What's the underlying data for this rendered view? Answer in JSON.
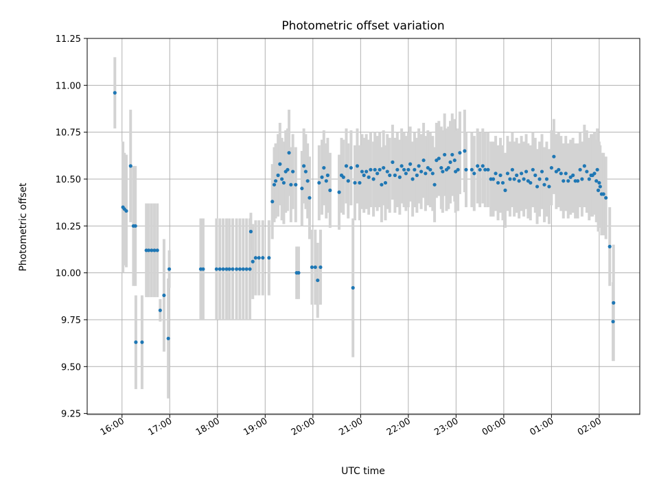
{
  "chart_data": {
    "type": "scatter",
    "title": "Photometric offset variation",
    "xlabel": "UTC time",
    "ylabel": "Photometric offset",
    "x_unit": "hours UTC, continuous across midnight (24 = 00:00 next day)",
    "xlim": [
      15.27,
      26.85
    ],
    "ylim": [
      9.245,
      11.25
    ],
    "x_tick_labels": [
      "16:00",
      "17:00",
      "18:00",
      "19:00",
      "20:00",
      "21:00",
      "22:00",
      "23:00",
      "00:00",
      "01:00",
      "02:00"
    ],
    "x_tick_values": [
      16,
      17,
      18,
      19,
      20,
      21,
      22,
      23,
      24,
      25,
      26
    ],
    "y_ticks": [
      9.25,
      9.5,
      9.75,
      10.0,
      10.25,
      10.5,
      10.75,
      11.0,
      11.25
    ],
    "y_tick_labels": [
      "9.25",
      "9.50",
      "9.75",
      "10.00",
      "10.25",
      "10.50",
      "10.75",
      "11.00",
      "11.25"
    ],
    "grid": true,
    "colors": {
      "points": "#1f77b4",
      "error_bars": "#d3d3d3",
      "grid": "#b0b0b0"
    },
    "series": [
      {
        "points": [
          [
            15.85,
            10.96,
            0.19
          ],
          [
            16.02,
            10.35,
            0.35
          ],
          [
            16.05,
            10.34,
            0.3
          ],
          [
            16.09,
            10.33,
            0.3
          ],
          [
            16.18,
            10.57,
            0.3
          ],
          [
            16.24,
            10.25,
            0.32
          ],
          [
            16.28,
            10.25,
            0.32
          ],
          [
            16.29,
            9.63,
            0.25
          ],
          [
            16.42,
            9.63,
            0.25
          ],
          [
            16.51,
            10.12,
            0.25
          ],
          [
            16.56,
            10.12,
            0.25
          ],
          [
            16.62,
            10.12,
            0.25
          ],
          [
            16.68,
            10.12,
            0.25
          ],
          [
            16.74,
            10.12,
            0.25
          ],
          [
            16.8,
            9.8,
            0.06
          ],
          [
            16.88,
            9.88,
            0.3
          ],
          [
            16.97,
            9.65,
            0.32
          ],
          [
            16.99,
            10.02,
            0.1
          ],
          [
            17.65,
            10.02,
            0.27
          ],
          [
            17.7,
            10.02,
            0.27
          ],
          [
            17.98,
            10.02,
            0.27
          ],
          [
            18.05,
            10.02,
            0.27
          ],
          [
            18.12,
            10.02,
            0.27
          ],
          [
            18.19,
            10.02,
            0.27
          ],
          [
            18.25,
            10.02,
            0.27
          ],
          [
            18.32,
            10.02,
            0.27
          ],
          [
            18.4,
            10.02,
            0.27
          ],
          [
            18.47,
            10.02,
            0.27
          ],
          [
            18.54,
            10.02,
            0.27
          ],
          [
            18.61,
            10.02,
            0.27
          ],
          [
            18.68,
            10.02,
            0.27
          ],
          [
            18.7,
            10.22,
            0.1
          ],
          [
            18.74,
            10.06,
            0.2
          ],
          [
            18.8,
            10.08,
            0.2
          ],
          [
            18.87,
            10.08,
            0.2
          ],
          [
            18.95,
            10.08,
            0.2
          ],
          [
            19.08,
            10.08,
            0.2
          ],
          [
            19.15,
            10.38,
            0.2
          ],
          [
            19.19,
            10.47,
            0.2
          ],
          [
            19.22,
            10.49,
            0.2
          ],
          [
            19.27,
            10.52,
            0.22
          ],
          [
            19.31,
            10.58,
            0.22
          ],
          [
            19.35,
            10.5,
            0.22
          ],
          [
            19.39,
            10.48,
            0.22
          ],
          [
            19.43,
            10.54,
            0.22
          ],
          [
            19.47,
            10.55,
            0.22
          ],
          [
            19.5,
            10.64,
            0.23
          ],
          [
            19.54,
            10.47,
            0.2
          ],
          [
            19.58,
            10.54,
            0.2
          ],
          [
            19.64,
            10.47,
            0.2
          ],
          [
            19.66,
            10.0,
            0.14
          ],
          [
            19.7,
            10.0,
            0.14
          ],
          [
            19.77,
            10.45,
            0.2
          ],
          [
            19.81,
            10.57,
            0.2
          ],
          [
            19.85,
            10.54,
            0.2
          ],
          [
            19.89,
            10.49,
            0.2
          ],
          [
            19.93,
            10.4,
            0.22
          ],
          [
            19.98,
            10.03,
            0.2
          ],
          [
            20.05,
            10.03,
            0.2
          ],
          [
            20.1,
            9.96,
            0.2
          ],
          [
            20.16,
            10.03,
            0.2
          ],
          [
            20.13,
            10.48,
            0.2
          ],
          [
            20.19,
            10.51,
            0.2
          ],
          [
            20.23,
            10.56,
            0.2
          ],
          [
            20.28,
            10.49,
            0.2
          ],
          [
            20.31,
            10.52,
            0.2
          ],
          [
            20.36,
            10.44,
            0.2
          ],
          [
            20.55,
            10.43,
            0.2
          ],
          [
            20.6,
            10.52,
            0.2
          ],
          [
            20.64,
            10.51,
            0.2
          ],
          [
            20.7,
            10.57,
            0.2
          ],
          [
            20.74,
            10.49,
            0.2
          ],
          [
            20.8,
            10.56,
            0.2
          ],
          [
            20.84,
            9.92,
            0.37
          ],
          [
            20.88,
            10.48,
            0.2
          ],
          [
            20.93,
            10.57,
            0.2
          ],
          [
            20.98,
            10.48,
            0.2
          ],
          [
            21.03,
            10.54,
            0.2
          ],
          [
            21.07,
            10.52,
            0.2
          ],
          [
            21.12,
            10.54,
            0.2
          ],
          [
            21.17,
            10.51,
            0.2
          ],
          [
            21.21,
            10.55,
            0.2
          ],
          [
            21.27,
            10.5,
            0.2
          ],
          [
            21.3,
            10.55,
            0.2
          ],
          [
            21.35,
            10.53,
            0.2
          ],
          [
            21.4,
            10.55,
            0.2
          ],
          [
            21.44,
            10.47,
            0.2
          ],
          [
            21.48,
            10.56,
            0.2
          ],
          [
            21.52,
            10.48,
            0.2
          ],
          [
            21.56,
            10.54,
            0.2
          ],
          [
            21.61,
            10.52,
            0.2
          ],
          [
            21.67,
            10.59,
            0.2
          ],
          [
            21.72,
            10.52,
            0.2
          ],
          [
            21.77,
            10.55,
            0.2
          ],
          [
            21.82,
            10.51,
            0.2
          ],
          [
            21.86,
            10.57,
            0.2
          ],
          [
            21.91,
            10.55,
            0.2
          ],
          [
            21.95,
            10.53,
            0.2
          ],
          [
            22.0,
            10.55,
            0.2
          ],
          [
            22.04,
            10.58,
            0.2
          ],
          [
            22.09,
            10.5,
            0.2
          ],
          [
            22.13,
            10.55,
            0.2
          ],
          [
            22.18,
            10.52,
            0.2
          ],
          [
            22.22,
            10.57,
            0.2
          ],
          [
            22.27,
            10.54,
            0.2
          ],
          [
            22.32,
            10.6,
            0.2
          ],
          [
            22.36,
            10.53,
            0.2
          ],
          [
            22.41,
            10.56,
            0.2
          ],
          [
            22.46,
            10.55,
            0.2
          ],
          [
            22.51,
            10.53,
            0.2
          ],
          [
            22.55,
            10.47,
            0.2
          ],
          [
            22.59,
            10.6,
            0.2
          ],
          [
            22.64,
            10.61,
            0.2
          ],
          [
            22.69,
            10.56,
            0.22
          ],
          [
            22.72,
            10.54,
            0.22
          ],
          [
            22.76,
            10.63,
            0.22
          ],
          [
            22.8,
            10.55,
            0.22
          ],
          [
            22.84,
            10.56,
            0.22
          ],
          [
            22.88,
            10.59,
            0.22
          ],
          [
            22.92,
            10.63,
            0.22
          ],
          [
            22.97,
            10.6,
            0.22
          ],
          [
            22.99,
            10.54,
            0.22
          ],
          [
            23.04,
            10.55,
            0.22
          ],
          [
            23.08,
            10.64,
            0.22
          ],
          [
            23.18,
            10.65,
            0.22
          ],
          [
            23.21,
            10.55,
            0.2
          ],
          [
            23.33,
            10.55,
            0.2
          ],
          [
            23.38,
            10.53,
            0.2
          ],
          [
            23.45,
            10.57,
            0.2
          ],
          [
            23.5,
            10.55,
            0.2
          ],
          [
            23.56,
            10.57,
            0.2
          ],
          [
            23.61,
            10.55,
            0.2
          ],
          [
            23.67,
            10.55,
            0.2
          ],
          [
            23.73,
            10.5,
            0.2
          ],
          [
            23.78,
            10.5,
            0.2
          ],
          [
            23.83,
            10.53,
            0.2
          ],
          [
            23.88,
            10.48,
            0.2
          ],
          [
            23.93,
            10.52,
            0.2
          ],
          [
            23.98,
            10.48,
            0.2
          ],
          [
            24.03,
            10.44,
            0.2
          ],
          [
            24.08,
            10.53,
            0.2
          ],
          [
            24.13,
            10.5,
            0.2
          ],
          [
            24.18,
            10.55,
            0.2
          ],
          [
            24.22,
            10.5,
            0.2
          ],
          [
            24.27,
            10.52,
            0.2
          ],
          [
            24.32,
            10.49,
            0.2
          ],
          [
            24.37,
            10.53,
            0.2
          ],
          [
            24.42,
            10.5,
            0.2
          ],
          [
            24.47,
            10.54,
            0.2
          ],
          [
            24.51,
            10.49,
            0.2
          ],
          [
            24.56,
            10.48,
            0.2
          ],
          [
            24.61,
            10.55,
            0.2
          ],
          [
            24.66,
            10.52,
            0.2
          ],
          [
            24.7,
            10.46,
            0.2
          ],
          [
            24.75,
            10.5,
            0.2
          ],
          [
            24.8,
            10.54,
            0.2
          ],
          [
            24.85,
            10.47,
            0.2
          ],
          [
            24.9,
            10.5,
            0.2
          ],
          [
            24.95,
            10.46,
            0.2
          ],
          [
            25.0,
            10.56,
            0.2
          ],
          [
            25.05,
            10.62,
            0.2
          ],
          [
            25.1,
            10.54,
            0.2
          ],
          [
            25.15,
            10.55,
            0.2
          ],
          [
            25.2,
            10.53,
            0.2
          ],
          [
            25.25,
            10.49,
            0.2
          ],
          [
            25.3,
            10.53,
            0.2
          ],
          [
            25.35,
            10.49,
            0.2
          ],
          [
            25.4,
            10.51,
            0.2
          ],
          [
            25.45,
            10.52,
            0.2
          ],
          [
            25.5,
            10.49,
            0.2
          ],
          [
            25.55,
            10.49,
            0.2
          ],
          [
            25.6,
            10.55,
            0.2
          ],
          [
            25.64,
            10.5,
            0.2
          ],
          [
            25.69,
            10.57,
            0.22
          ],
          [
            25.74,
            10.54,
            0.22
          ],
          [
            25.79,
            10.5,
            0.22
          ],
          [
            25.83,
            10.52,
            0.22
          ],
          [
            25.86,
            10.52,
            0.22
          ],
          [
            25.9,
            10.53,
            0.22
          ],
          [
            25.94,
            10.49,
            0.22
          ],
          [
            25.96,
            10.55,
            0.22
          ],
          [
            25.98,
            10.44,
            0.22
          ],
          [
            26.0,
            10.48,
            0.22
          ],
          [
            26.02,
            10.46,
            0.22
          ],
          [
            26.05,
            10.42,
            0.22
          ],
          [
            26.09,
            10.42,
            0.22
          ],
          [
            26.14,
            10.4,
            0.22
          ],
          [
            26.22,
            10.14,
            0.21
          ],
          [
            26.29,
            9.74,
            0.21
          ],
          [
            26.3,
            9.84,
            0.31
          ]
        ]
      }
    ]
  }
}
